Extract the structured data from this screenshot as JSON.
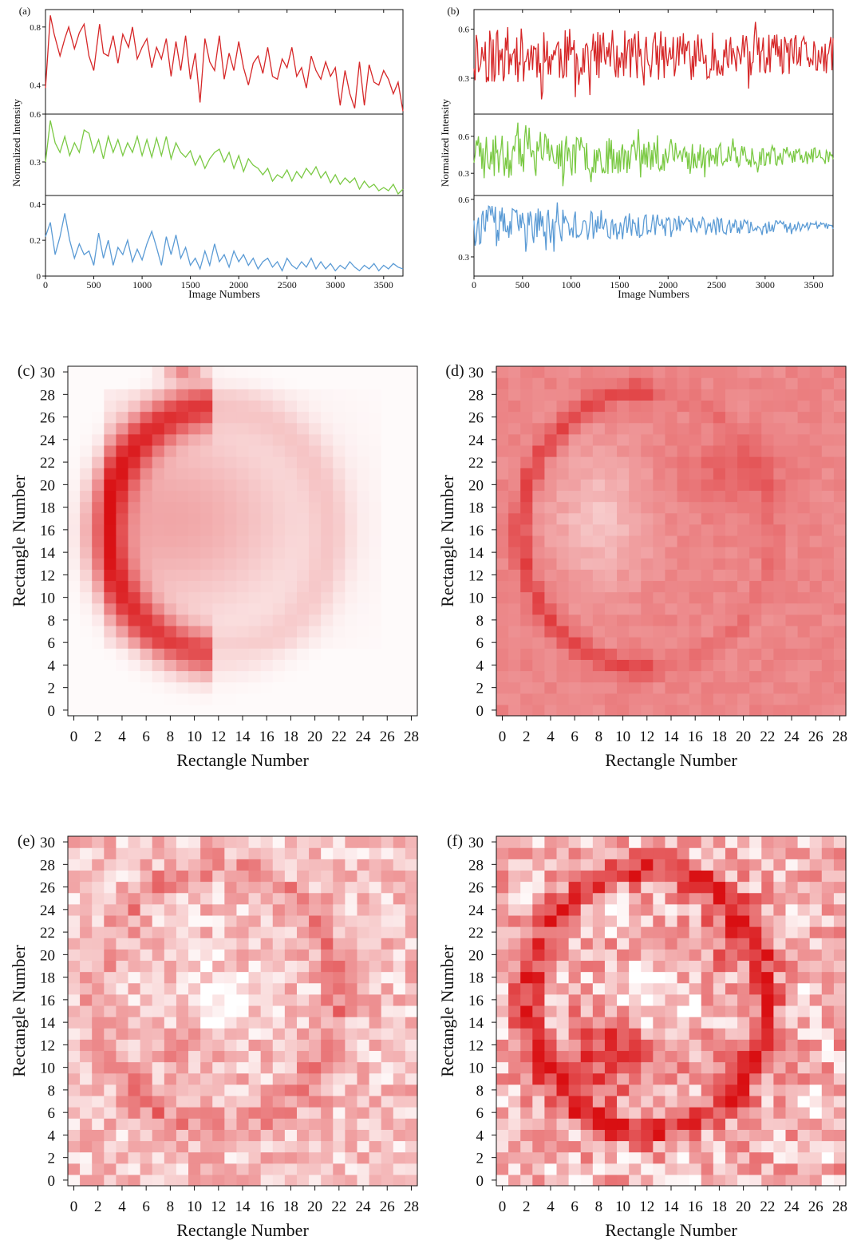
{
  "colors": {
    "red": "#d62728",
    "green": "#7ac943",
    "blue": "#5b9bd5",
    "heat_max": "#d90f12",
    "heat_min": "#ffffff",
    "axis": "#111111"
  },
  "chart_data": [
    {
      "id": "a",
      "type": "line",
      "panel_label": "(a)",
      "xlabel": "Image Numbers",
      "ylabel": "Normalized Intensity",
      "x_ticks": [
        "0",
        "500",
        "1000",
        "1500",
        "2000",
        "2500",
        "3000",
        "3500"
      ],
      "xlim": [
        0,
        3700
      ],
      "subplots": [
        {
          "color": "red",
          "ylim": [
            0.2,
            0.92
          ],
          "y_ticks": [
            "0.4",
            "0.8"
          ],
          "y_tick_values": [
            0.4,
            0.8
          ],
          "x": [
            0,
            50,
            90,
            150,
            200,
            240,
            300,
            350,
            400,
            450,
            500,
            560,
            600,
            650,
            700,
            750,
            800,
            860,
            900,
            950,
            1000,
            1050,
            1100,
            1150,
            1200,
            1250,
            1300,
            1350,
            1400,
            1450,
            1500,
            1550,
            1600,
            1650,
            1700,
            1750,
            1800,
            1850,
            1900,
            1950,
            2000,
            2050,
            2100,
            2150,
            2200,
            2250,
            2300,
            2350,
            2400,
            2450,
            2500,
            2550,
            2600,
            2650,
            2700,
            2750,
            2800,
            2850,
            2900,
            2950,
            3000,
            3050,
            3100,
            3150,
            3200,
            3250,
            3300,
            3350,
            3400,
            3450,
            3500,
            3550,
            3600,
            3650,
            3700
          ],
          "y": [
            0.38,
            0.88,
            0.75,
            0.6,
            0.72,
            0.8,
            0.65,
            0.76,
            0.82,
            0.6,
            0.5,
            0.82,
            0.62,
            0.6,
            0.74,
            0.55,
            0.75,
            0.66,
            0.8,
            0.58,
            0.66,
            0.72,
            0.52,
            0.66,
            0.58,
            0.72,
            0.46,
            0.7,
            0.5,
            0.74,
            0.44,
            0.62,
            0.28,
            0.72,
            0.56,
            0.5,
            0.74,
            0.44,
            0.62,
            0.5,
            0.7,
            0.52,
            0.4,
            0.55,
            0.6,
            0.48,
            0.66,
            0.46,
            0.44,
            0.58,
            0.52,
            0.66,
            0.46,
            0.52,
            0.38,
            0.6,
            0.5,
            0.44,
            0.56,
            0.46,
            0.52,
            0.26,
            0.5,
            0.34,
            0.24,
            0.56,
            0.26,
            0.54,
            0.42,
            0.4,
            0.5,
            0.44,
            0.34,
            0.42,
            0.22
          ]
        },
        {
          "color": "green",
          "ylim": [
            0.09,
            0.6
          ],
          "y_ticks": [
            "0.6",
            "0.3"
          ],
          "y_tick_values": [
            0.6,
            0.3
          ],
          "x": [
            0,
            50,
            100,
            150,
            200,
            250,
            300,
            350,
            400,
            450,
            500,
            550,
            600,
            650,
            700,
            750,
            800,
            850,
            900,
            950,
            1000,
            1050,
            1100,
            1150,
            1200,
            1250,
            1300,
            1350,
            1400,
            1450,
            1500,
            1550,
            1600,
            1650,
            1700,
            1750,
            1800,
            1850,
            1900,
            1950,
            2000,
            2050,
            2100,
            2150,
            2200,
            2250,
            2300,
            2350,
            2400,
            2450,
            2500,
            2550,
            2600,
            2650,
            2700,
            2750,
            2800,
            2850,
            2900,
            2950,
            3000,
            3050,
            3100,
            3150,
            3200,
            3250,
            3300,
            3350,
            3400,
            3450,
            3500,
            3550,
            3600,
            3650,
            3700
          ],
          "y": [
            0.3,
            0.56,
            0.42,
            0.36,
            0.46,
            0.34,
            0.42,
            0.36,
            0.5,
            0.48,
            0.36,
            0.44,
            0.32,
            0.46,
            0.36,
            0.44,
            0.34,
            0.42,
            0.36,
            0.46,
            0.34,
            0.44,
            0.33,
            0.45,
            0.34,
            0.46,
            0.32,
            0.42,
            0.36,
            0.33,
            0.37,
            0.28,
            0.34,
            0.26,
            0.32,
            0.36,
            0.38,
            0.3,
            0.36,
            0.26,
            0.34,
            0.24,
            0.32,
            0.28,
            0.26,
            0.22,
            0.26,
            0.18,
            0.22,
            0.2,
            0.25,
            0.18,
            0.24,
            0.2,
            0.26,
            0.22,
            0.27,
            0.2,
            0.24,
            0.17,
            0.22,
            0.16,
            0.2,
            0.17,
            0.2,
            0.13,
            0.18,
            0.14,
            0.16,
            0.12,
            0.14,
            0.12,
            0.16,
            0.1,
            0.13
          ]
        },
        {
          "color": "blue",
          "ylim": [
            0,
            0.45
          ],
          "y_ticks": [
            "0.4",
            "0.2",
            "0"
          ],
          "y_tick_values": [
            0.4,
            0.2,
            0
          ],
          "x": [
            0,
            50,
            100,
            150,
            200,
            250,
            300,
            350,
            400,
            450,
            500,
            550,
            600,
            650,
            700,
            750,
            800,
            850,
            900,
            950,
            1000,
            1050,
            1100,
            1150,
            1200,
            1250,
            1300,
            1350,
            1400,
            1450,
            1500,
            1550,
            1600,
            1650,
            1700,
            1750,
            1800,
            1850,
            1900,
            1950,
            2000,
            2050,
            2100,
            2150,
            2200,
            2250,
            2300,
            2350,
            2400,
            2450,
            2500,
            2550,
            2600,
            2650,
            2700,
            2750,
            2800,
            2850,
            2900,
            2950,
            3000,
            3050,
            3100,
            3150,
            3200,
            3250,
            3300,
            3350,
            3400,
            3450,
            3500,
            3550,
            3600,
            3650,
            3700
          ],
          "y": [
            0.22,
            0.3,
            0.12,
            0.22,
            0.35,
            0.2,
            0.1,
            0.18,
            0.12,
            0.14,
            0.06,
            0.24,
            0.1,
            0.2,
            0.06,
            0.16,
            0.12,
            0.2,
            0.08,
            0.15,
            0.09,
            0.18,
            0.25,
            0.16,
            0.06,
            0.22,
            0.12,
            0.23,
            0.1,
            0.16,
            0.06,
            0.1,
            0.04,
            0.14,
            0.06,
            0.18,
            0.08,
            0.12,
            0.05,
            0.14,
            0.08,
            0.12,
            0.06,
            0.1,
            0.04,
            0.08,
            0.1,
            0.05,
            0.08,
            0.03,
            0.1,
            0.06,
            0.04,
            0.08,
            0.05,
            0.1,
            0.04,
            0.08,
            0.04,
            0.07,
            0.03,
            0.06,
            0.04,
            0.08,
            0.05,
            0.03,
            0.06,
            0.04,
            0.07,
            0.03,
            0.06,
            0.04,
            0.07,
            0.05,
            0.04
          ]
        }
      ]
    },
    {
      "id": "b",
      "type": "line",
      "panel_label": "(b)",
      "xlabel": "Image Numbers",
      "ylabel": "Normalized Intensity",
      "x_ticks": [
        "0",
        "500",
        "1000",
        "1500",
        "2000",
        "2500",
        "3000",
        "3500"
      ],
      "xlim": [
        0,
        3700
      ],
      "subplots": [
        {
          "color": "red",
          "ylim": [
            0.08,
            0.72
          ],
          "y_ticks": [
            "0.6",
            "0.3"
          ],
          "y_tick_values": [
            0.6,
            0.3
          ],
          "mean": 0.44,
          "amp_start": 0.18,
          "amp_end": 0.12,
          "n": 320,
          "seed": 11
        },
        {
          "color": "green",
          "ylim": [
            0.12,
            0.78
          ],
          "y_ticks": [
            "0.6",
            "0.3"
          ],
          "y_tick_values": [
            0.6,
            0.3
          ],
          "mean": 0.44,
          "amp_start": 0.2,
          "amp_end": 0.06,
          "n": 320,
          "seed": 23
        },
        {
          "color": "blue",
          "ylim": [
            0.2,
            0.62
          ],
          "y_ticks": [
            "0.6",
            "0.3"
          ],
          "y_tick_values": [
            0.6,
            0.3
          ],
          "mean": 0.46,
          "amp_start": 0.11,
          "amp_end": 0.015,
          "n": 320,
          "seed": 37
        }
      ]
    },
    {
      "id": "c",
      "type": "heatmap",
      "panel_label": "(c)",
      "xlabel": "Rectangle Number",
      "ylabel": "Rectangle Number",
      "x_ticks": [
        "0",
        "2",
        "4",
        "6",
        "8",
        "10",
        "12",
        "14",
        "16",
        "18",
        "20",
        "22",
        "24",
        "26",
        "28"
      ],
      "y_ticks": [
        "0",
        "2",
        "4",
        "6",
        "8",
        "10",
        "12",
        "14",
        "16",
        "18",
        "20",
        "22",
        "24",
        "26",
        "28",
        "30"
      ],
      "cols": 29,
      "rows": 31,
      "pattern": "smooth-thorax",
      "base": 0.02,
      "ring": 0.72,
      "inner": 0.35,
      "noise": 0.0
    },
    {
      "id": "d",
      "type": "heatmap",
      "panel_label": "(d)",
      "xlabel": "Rectangle Number",
      "ylabel": "Rectangle Number",
      "x_ticks": [
        "0",
        "2",
        "4",
        "6",
        "8",
        "10",
        "12",
        "14",
        "16",
        "18",
        "20",
        "22",
        "24",
        "26",
        "28"
      ],
      "y_ticks": [
        "0",
        "2",
        "4",
        "6",
        "8",
        "10",
        "12",
        "14",
        "16",
        "18",
        "20",
        "22",
        "24",
        "26",
        "28",
        "30"
      ],
      "cols": 29,
      "rows": 31,
      "pattern": "lungs-dark",
      "base": 0.5,
      "ring": 0.78,
      "inner": 0.3,
      "noise": 0.05
    },
    {
      "id": "e",
      "type": "heatmap",
      "panel_label": "(e)",
      "xlabel": "Rectangle Number",
      "ylabel": "Rectangle Number",
      "x_ticks": [
        "0",
        "2",
        "4",
        "6",
        "8",
        "10",
        "12",
        "14",
        "16",
        "18",
        "20",
        "22",
        "24",
        "26",
        "28"
      ],
      "y_ticks": [
        "0",
        "2",
        "4",
        "6",
        "8",
        "10",
        "12",
        "14",
        "16",
        "18",
        "20",
        "22",
        "24",
        "26",
        "28",
        "30"
      ],
      "cols": 29,
      "rows": 31,
      "pattern": "noisy-light",
      "base": 0.25,
      "ring": 0.4,
      "inner": 0.18,
      "noise": 0.22
    },
    {
      "id": "f",
      "type": "heatmap",
      "panel_label": "(f)",
      "xlabel": "Rectangle Number",
      "ylabel": "Rectangle Number",
      "x_ticks": [
        "0",
        "2",
        "4",
        "6",
        "8",
        "10",
        "12",
        "14",
        "16",
        "18",
        "20",
        "22",
        "24",
        "26",
        "28"
      ],
      "y_ticks": [
        "0",
        "2",
        "4",
        "6",
        "8",
        "10",
        "12",
        "14",
        "16",
        "18",
        "20",
        "22",
        "24",
        "26",
        "28",
        "30"
      ],
      "cols": 29,
      "rows": 31,
      "pattern": "noisy-strong",
      "base": 0.3,
      "ring": 0.95,
      "inner": 0.85,
      "noise": 0.3
    }
  ]
}
